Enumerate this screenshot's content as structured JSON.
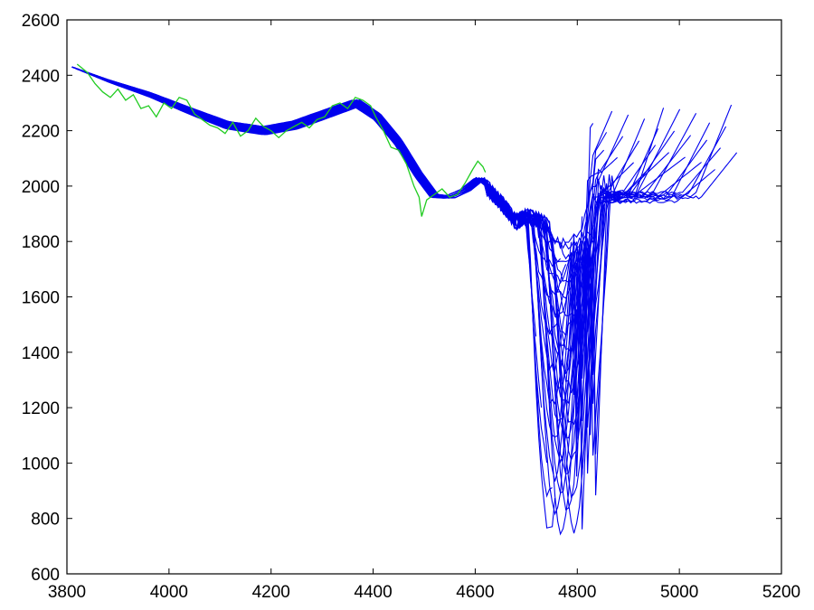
{
  "chart_data": {
    "type": "line",
    "title": "",
    "xlabel": "",
    "ylabel": "",
    "xlim": [
      3800,
      5200
    ],
    "ylim": [
      600,
      2600
    ],
    "xticks": [
      3800,
      4000,
      4200,
      4400,
      4600,
      4800,
      5000,
      5200
    ],
    "yticks": [
      600,
      800,
      1000,
      1200,
      1400,
      1600,
      1800,
      2000,
      2200,
      2400,
      2600
    ],
    "xtick_labels": [
      "3800",
      "4000",
      "4200",
      "4400",
      "4600",
      "4800",
      "5000",
      "5200"
    ],
    "ytick_labels": [
      "600",
      "800",
      "1000",
      "1200",
      "1400",
      "1600",
      "1800",
      "2000",
      "2200",
      "2400",
      "2600"
    ],
    "grid": false,
    "legend": "none",
    "series_colors": {
      "observed": "#22cc22",
      "ensemble": "#0000ee"
    },
    "observed": {
      "x": [
        3820,
        3840,
        3855,
        3870,
        3885,
        3900,
        3915,
        3930,
        3945,
        3960,
        3975,
        3990,
        4005,
        4020,
        4035,
        4050,
        4065,
        4080,
        4095,
        4110,
        4125,
        4140,
        4155,
        4170,
        4185,
        4200,
        4215,
        4230,
        4245,
        4260,
        4275,
        4290,
        4305,
        4320,
        4335,
        4350,
        4365,
        4380,
        4395,
        4405,
        4420,
        4435,
        4450,
        4465,
        4480,
        4490,
        4495,
        4505,
        4520,
        4535,
        4550,
        4565,
        4580,
        4595,
        4605,
        4615,
        4620
      ],
      "y": [
        2440,
        2410,
        2370,
        2340,
        2320,
        2350,
        2310,
        2330,
        2280,
        2290,
        2250,
        2300,
        2280,
        2320,
        2310,
        2260,
        2240,
        2220,
        2210,
        2190,
        2230,
        2180,
        2200,
        2245,
        2215,
        2200,
        2175,
        2200,
        2215,
        2230,
        2210,
        2240,
        2250,
        2290,
        2300,
        2280,
        2320,
        2310,
        2290,
        2250,
        2200,
        2140,
        2130,
        2080,
        2000,
        1960,
        1890,
        1950,
        1970,
        1990,
        1960,
        1970,
        2010,
        2060,
        2090,
        2070,
        2050
      ]
    },
    "ensemble": {
      "members": 50,
      "x_start": 3810,
      "x_end_range": [
        4620,
        5115
      ],
      "path_x": [
        3810,
        3880,
        3960,
        4040,
        4110,
        4180,
        4240,
        4300,
        4360,
        4400,
        4440,
        4480,
        4510,
        4540,
        4570,
        4600,
        4620,
        4640,
        4660,
        4680,
        4700,
        4720,
        4740,
        4760,
        4780,
        4800
      ],
      "path_y": [
        2430,
        2380,
        2330,
        2270,
        2220,
        2200,
        2220,
        2260,
        2300,
        2250,
        2160,
        2040,
        1965,
        1960,
        1985,
        2030,
        2000,
        1960,
        1920,
        1870,
        1890,
        1880,
        1860,
        1820,
        1800,
        1820
      ],
      "trough_y_range": [
        700,
        1800
      ],
      "late_plateau_y": 1960,
      "end_y_range": [
        2050,
        2310
      ]
    }
  }
}
